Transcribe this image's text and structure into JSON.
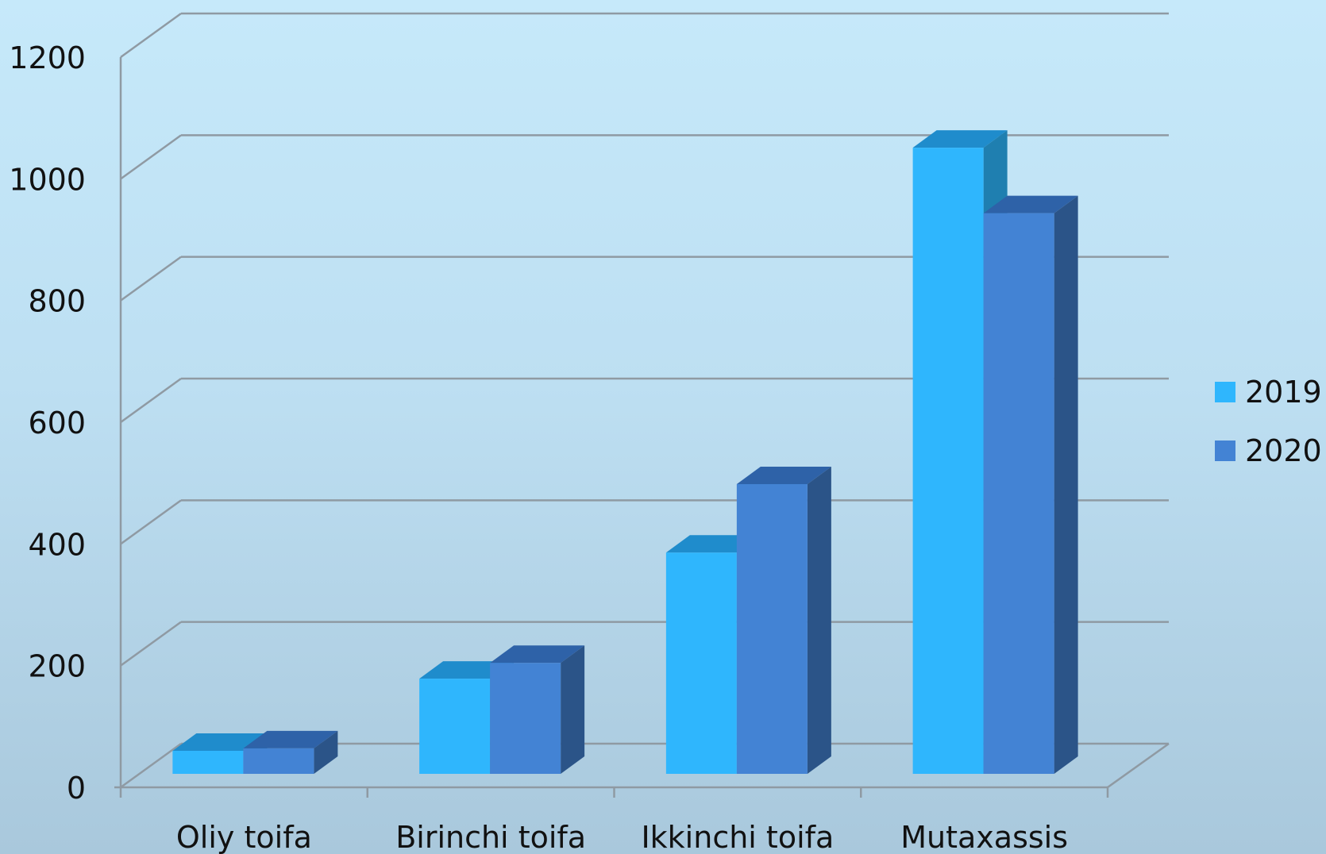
{
  "chart_data": {
    "type": "bar",
    "style": "3d-clustered-column",
    "title": "",
    "xlabel": "",
    "ylabel": "",
    "categories": [
      "Oliy toifa",
      "Birinchi toifa",
      "Ikkinchi toifa",
      "Mutaxassis"
    ],
    "series": [
      {
        "name": "2019",
        "values": [
          38,
          157,
          365,
          1033
        ],
        "color": "#2fb6fd",
        "side_color": "#1f7fb0",
        "top_color": "#1f8ccc"
      },
      {
        "name": "2020",
        "values": [
          42,
          183,
          478,
          925
        ],
        "color": "#4383d4",
        "side_color": "#2b5488",
        "top_color": "#2e62a8"
      }
    ],
    "ylim": [
      0,
      1200
    ],
    "yticks": [
      0,
      200,
      400,
      600,
      800,
      1000,
      1200
    ],
    "grid": true,
    "legend": "right",
    "colors": {
      "grid": "#8f9aa3",
      "axis": "#8f9aa3",
      "text": "#111111"
    }
  }
}
